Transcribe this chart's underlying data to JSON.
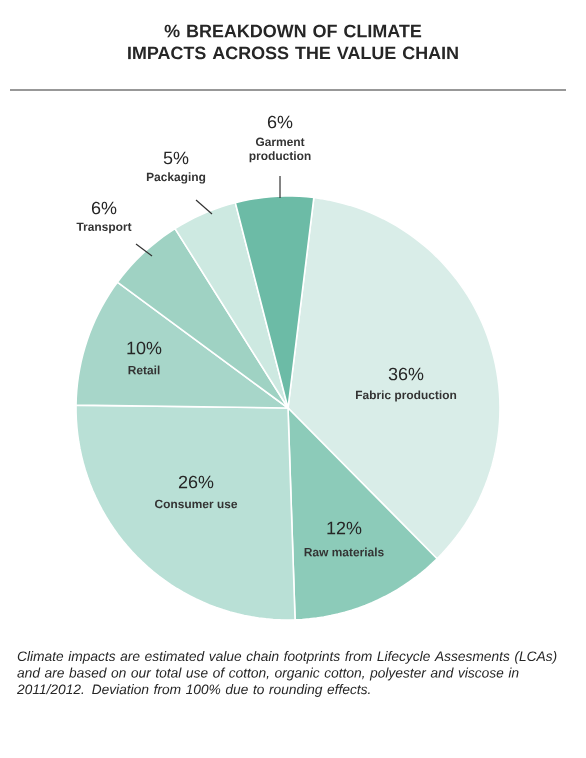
{
  "chart_data": {
    "type": "pie",
    "title": "% BREAKDOWN OF CLIMATE IMPACTS ACROSS THE VALUE CHAIN",
    "categories": [
      "Fabric production",
      "Raw materials",
      "Consumer use",
      "Retail",
      "Transport",
      "Packaging",
      "Garment production"
    ],
    "values": [
      36,
      12,
      26,
      10,
      6,
      5,
      6
    ],
    "value_labels": [
      "36%",
      "12%",
      "26%",
      "10%",
      "6%",
      "5%",
      "6%"
    ],
    "colors": [
      "#d9ede8",
      "#8ccbb9",
      "#b9e0d6",
      "#a7d6c9",
      "#9fd2c3",
      "#cde9e1",
      "#6cbba6"
    ],
    "annotations": [
      "Climate impacts are estimated value chain footprints from Lifecycle Assesments (LCAs) and are based on our total use of cotton, organic cotton, polyester and viscose in 2011/2012. Deviation from 100% due to rounding effects."
    ]
  }
}
